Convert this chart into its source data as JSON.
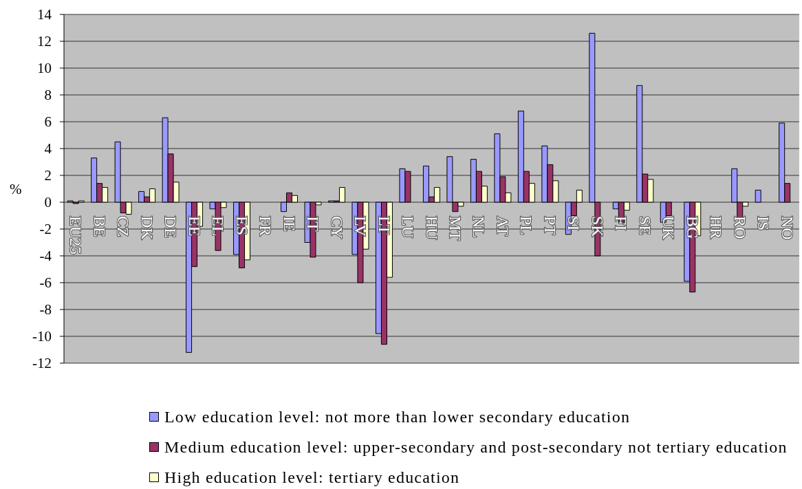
{
  "chart_data": {
    "type": "bar",
    "ylabel": "%",
    "categories": [
      "EU25",
      "BE",
      "CZ",
      "DK",
      "DE",
      "EE",
      "EL",
      "ES",
      "FR",
      "IE",
      "IT",
      "CY",
      "LV",
      "LT",
      "LU",
      "HU",
      "MT",
      "NL",
      "AT",
      "PL",
      "PT",
      "SI",
      "SK",
      "FI",
      "SE",
      "UK",
      "BG",
      "HR",
      "RO",
      "IS",
      "NO"
    ],
    "series": [
      {
        "name": "Low education level: not more than lower secondary education",
        "color": "#9999ff",
        "values": [
          0.1,
          3.3,
          4.5,
          0.8,
          6.3,
          -11.2,
          -0.5,
          -3.9,
          null,
          -0.7,
          -3.0,
          0.1,
          -3.9,
          -9.8,
          2.5,
          2.7,
          3.4,
          3.2,
          5.1,
          6.8,
          4.2,
          -2.4,
          12.6,
          -0.5,
          8.7,
          -1.5,
          -5.9,
          null,
          2.5,
          0.9,
          5.9
        ]
      },
      {
        "name": "Medium education level: upper-secondary and post-secondary not tertiary education",
        "color": "#993366",
        "values": [
          -0.1,
          1.4,
          -0.8,
          0.4,
          3.6,
          -4.8,
          -3.6,
          -4.9,
          null,
          0.7,
          -4.1,
          0.1,
          -6.0,
          -10.6,
          2.3,
          0.4,
          -0.7,
          2.3,
          1.9,
          2.3,
          2.8,
          -1.0,
          -4.0,
          -1.5,
          2.1,
          -1.0,
          -6.7,
          null,
          -1.2,
          null,
          1.4
        ]
      },
      {
        "name": "High education level: tertiary education",
        "color": "#ffffcc",
        "values": [
          0.1,
          1.1,
          -0.9,
          1.0,
          1.5,
          -1.8,
          -0.4,
          -4.3,
          null,
          0.5,
          -0.2,
          1.1,
          -3.5,
          -5.6,
          null,
          1.1,
          -0.3,
          1.2,
          0.7,
          1.4,
          1.6,
          0.9,
          null,
          -0.6,
          1.7,
          null,
          -2.5,
          null,
          -0.3,
          null,
          null
        ]
      }
    ],
    "ylim": [
      -12,
      14
    ],
    "yticks": [
      -12,
      -10,
      -8,
      -6,
      -4,
      -2,
      0,
      2,
      4,
      6,
      8,
      10,
      12,
      14
    ],
    "grid": "y",
    "legend": "bottom"
  }
}
